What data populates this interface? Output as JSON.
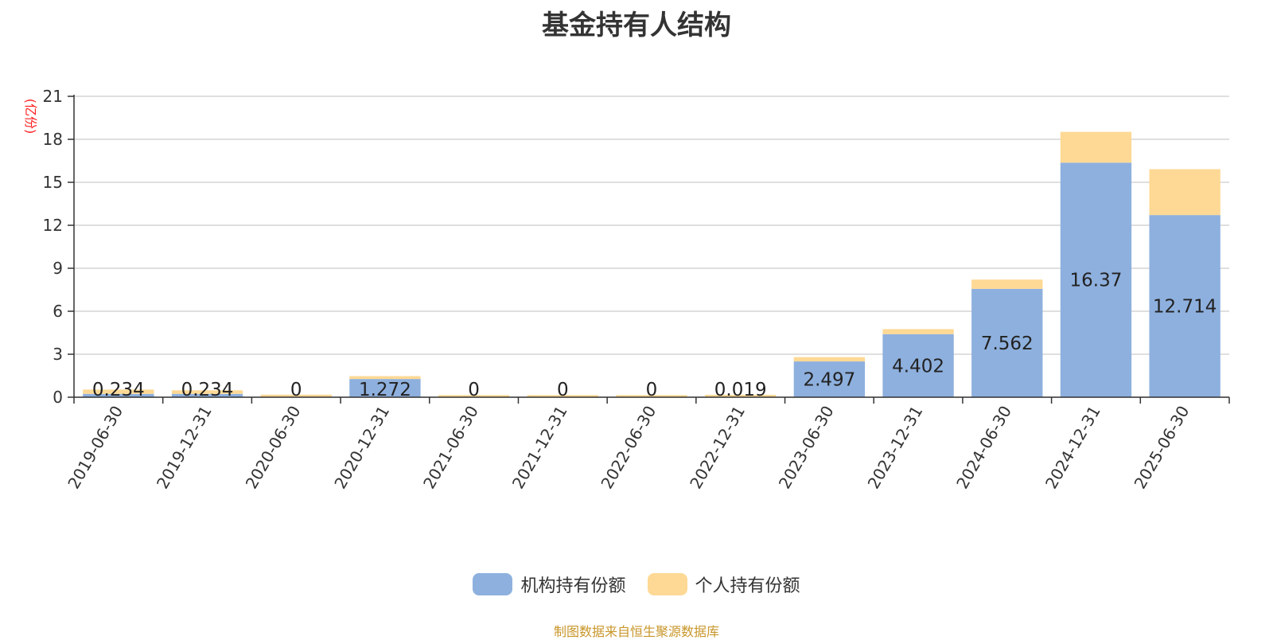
{
  "colors": {
    "institutional": "#8eb0de",
    "individual": "#fdd995",
    "unit_label": "#ff2020",
    "source": "#c8962a"
  },
  "chart_data": {
    "type": "bar",
    "stacked": true,
    "title": "基金持有人结构",
    "ylabel": "(亿份)",
    "ylim": [
      0,
      21
    ],
    "yticks": [
      "0",
      "3",
      "6",
      "9",
      "12",
      "15",
      "18",
      "21"
    ],
    "grid": true,
    "legend_position": "bottom-center",
    "categories": [
      "2019-06-30",
      "2019-12-31",
      "2020-06-30",
      "2020-12-31",
      "2021-06-30",
      "2021-12-31",
      "2022-06-30",
      "2022-12-31",
      "2023-06-30",
      "2023-12-31",
      "2024-06-30",
      "2024-12-31",
      "2025-06-30"
    ],
    "series": [
      {
        "name": "机构持有份额",
        "values": [
          0.234,
          0.234,
          0,
          1.272,
          0,
          0,
          0,
          0.019,
          2.497,
          4.402,
          7.562,
          16.37,
          12.714
        ],
        "labels": [
          "0.234",
          "0.234",
          "0",
          "1.272",
          "0",
          "0",
          "0",
          "0.019",
          "2.497",
          "4.402",
          "7.562",
          "16.37",
          "12.714"
        ]
      },
      {
        "name": "个人持有份额",
        "values": [
          0.3,
          0.25,
          0.18,
          0.2,
          0.15,
          0.15,
          0.15,
          0.15,
          0.3,
          0.35,
          0.65,
          2.15,
          3.2
        ]
      }
    ]
  },
  "source_text": "制图数据来自恒生聚源数据库"
}
